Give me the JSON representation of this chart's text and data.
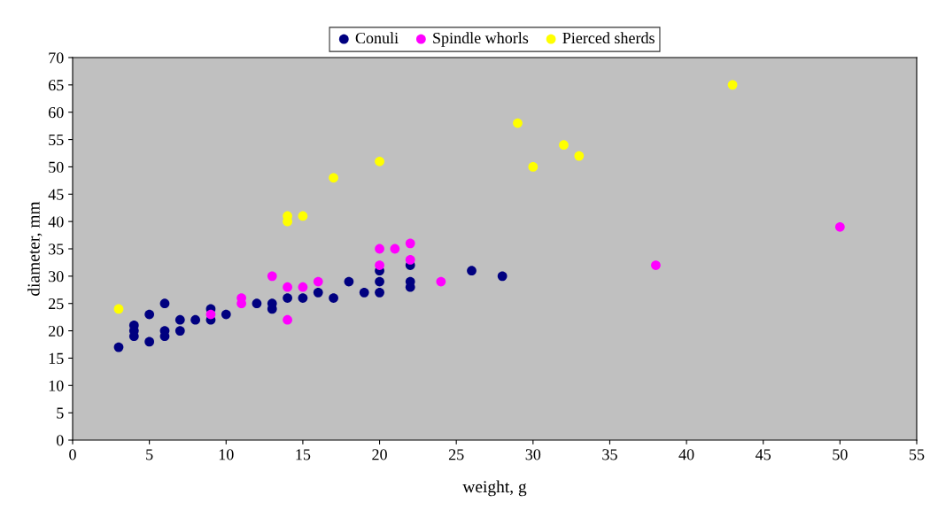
{
  "chart_data": {
    "type": "scatter",
    "xlabel": "weight, g",
    "ylabel": "diameter, mm",
    "xlim": [
      0,
      55
    ],
    "xticks": [
      0,
      5,
      10,
      15,
      20,
      25,
      30,
      35,
      40,
      45,
      50,
      55
    ],
    "ylim": [
      0,
      70
    ],
    "yticks": [
      0,
      5,
      10,
      15,
      20,
      25,
      30,
      35,
      40,
      45,
      50,
      55,
      60,
      65,
      70
    ],
    "grid": false,
    "legend": "top",
    "marker": "circle",
    "series": [
      {
        "name": "Conuli",
        "color": "#000080",
        "x": [
          3,
          4,
          4,
          4,
          5,
          5,
          6,
          6,
          6,
          7,
          7,
          8,
          9,
          9,
          10,
          12,
          13,
          13,
          14,
          15,
          16,
          17,
          18,
          19,
          20,
          20,
          20,
          22,
          22,
          22,
          26,
          28
        ],
        "values": [
          17,
          19,
          20,
          21,
          18,
          23,
          19,
          20,
          25,
          20,
          22,
          22,
          22,
          24,
          23,
          25,
          24,
          25,
          26,
          26,
          27,
          26,
          29,
          27,
          27,
          29,
          31,
          28,
          29,
          32,
          31,
          30
        ]
      },
      {
        "name": "Spindle whorls",
        "color": "#ff00ff",
        "x": [
          9,
          11,
          11,
          13,
          14,
          14,
          15,
          16,
          20,
          20,
          21,
          22,
          22,
          24,
          38,
          50
        ],
        "values": [
          23,
          25,
          26,
          30,
          28,
          22,
          28,
          29,
          32,
          35,
          35,
          36,
          33,
          29,
          32,
          39
        ]
      },
      {
        "name": "Pierced sherds",
        "color": "#ffff00",
        "x": [
          3,
          14,
          14,
          15,
          17,
          20,
          29,
          30,
          32,
          33,
          43
        ],
        "values": [
          24,
          40,
          41,
          41,
          48,
          51,
          58,
          50,
          54,
          52,
          65
        ]
      }
    ]
  }
}
